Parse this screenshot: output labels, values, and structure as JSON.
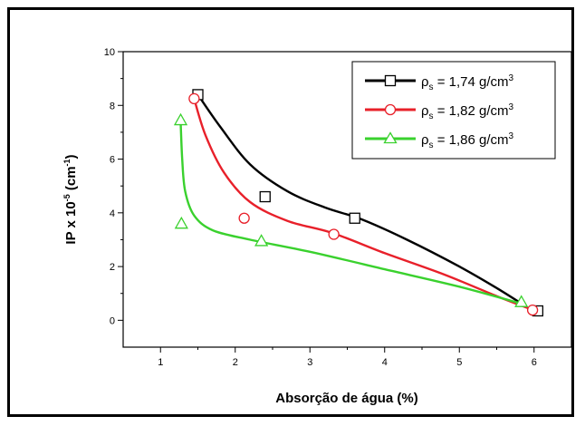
{
  "chart_data": {
    "type": "scatter",
    "xlabel": "Absorção de água (%)",
    "ylabel": {
      "main": "IP x 10",
      "sup": "-5",
      "unit_open": " (cm",
      "unit_sup": "-1",
      "unit_close": ")"
    },
    "xlim": [
      0.5,
      6.5
    ],
    "ylim": [
      -1,
      10
    ],
    "x_ticks": [
      1,
      2,
      3,
      4,
      5,
      6
    ],
    "y_ticks": [
      0,
      2,
      4,
      6,
      8,
      10
    ],
    "grid": false,
    "legend_position": "top-right",
    "series": [
      {
        "name": {
          "prefix": "ρ",
          "sub": "s",
          "text": " = 1,74 g/cm",
          "sup": "3"
        },
        "color": "#000000",
        "marker": "square",
        "points": [
          [
            1.5,
            8.4
          ],
          [
            2.4,
            4.6
          ],
          [
            3.6,
            3.8
          ],
          [
            6.05,
            0.35
          ]
        ],
        "fit": [
          [
            1.5,
            8.4
          ],
          [
            1.8,
            7.2
          ],
          [
            2.2,
            5.8
          ],
          [
            2.7,
            4.8
          ],
          [
            3.2,
            4.2
          ],
          [
            3.7,
            3.75
          ],
          [
            4.3,
            3.0
          ],
          [
            5.0,
            2.0
          ],
          [
            5.5,
            1.2
          ],
          [
            5.9,
            0.5
          ]
        ]
      },
      {
        "name": {
          "prefix": "ρ",
          "sub": "s",
          "text": " = 1,82 g/cm",
          "sup": "3"
        },
        "color": "#e8202a",
        "marker": "circle",
        "points": [
          [
            1.45,
            8.25
          ],
          [
            2.12,
            3.8
          ],
          [
            3.32,
            3.2
          ],
          [
            5.98,
            0.38
          ]
        ],
        "fit": [
          [
            1.45,
            8.25
          ],
          [
            1.6,
            6.9
          ],
          [
            1.85,
            5.5
          ],
          [
            2.2,
            4.4
          ],
          [
            2.7,
            3.7
          ],
          [
            3.3,
            3.25
          ],
          [
            4.0,
            2.5
          ],
          [
            4.8,
            1.7
          ],
          [
            5.5,
            0.9
          ],
          [
            5.95,
            0.42
          ]
        ]
      },
      {
        "name": {
          "prefix": "ρ",
          "sub": "s",
          "text": " = 1,86 g/cm",
          "sup": "3"
        },
        "color": "#3ad12e",
        "marker": "triangle",
        "points": [
          [
            1.27,
            7.45
          ],
          [
            1.28,
            3.6
          ],
          [
            2.35,
            2.95
          ],
          [
            5.83,
            0.68
          ]
        ],
        "fit": [
          [
            1.27,
            7.35
          ],
          [
            1.29,
            6.0
          ],
          [
            1.33,
            4.8
          ],
          [
            1.45,
            3.9
          ],
          [
            1.7,
            3.35
          ],
          [
            2.2,
            3.0
          ],
          [
            3.0,
            2.55
          ],
          [
            4.0,
            1.9
          ],
          [
            5.0,
            1.25
          ],
          [
            5.83,
            0.62
          ]
        ]
      }
    ]
  }
}
